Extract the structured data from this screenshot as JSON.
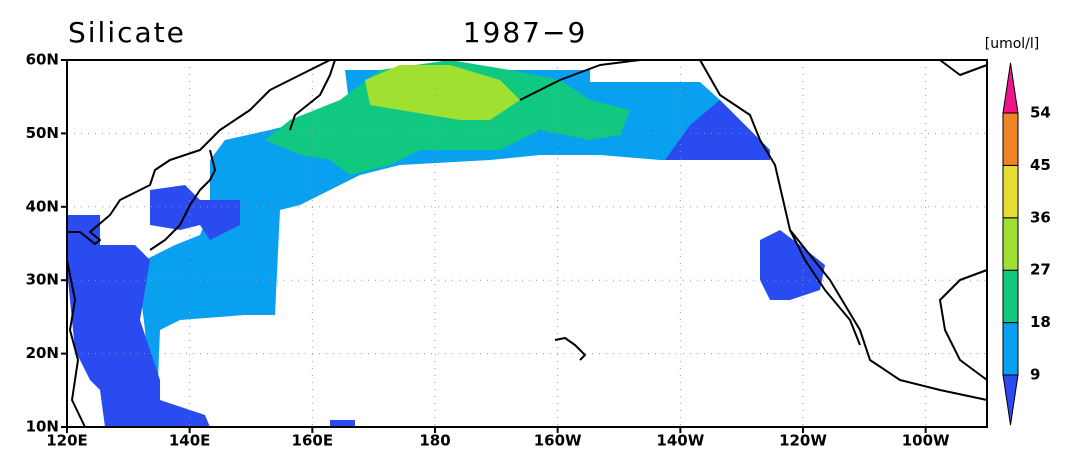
{
  "map": {
    "title": "Silicate",
    "subtitle": "1987−9",
    "unit": "[umol/l]",
    "lat_labels": [
      "60N",
      "50N",
      "40N",
      "30N",
      "20N",
      "10N"
    ],
    "lon_labels": [
      "120E",
      "140E",
      "160E",
      "180",
      "160W",
      "140W",
      "120W",
      "100W"
    ]
  },
  "colorbar": {
    "levels": [
      "9",
      "18",
      "27",
      "36",
      "45",
      "54"
    ],
    "colors": [
      "#2a4bf0",
      "#0aa0f0",
      "#10c880",
      "#a0e030",
      "#e6dc32",
      "#f08228",
      "#f0148c"
    ]
  }
}
